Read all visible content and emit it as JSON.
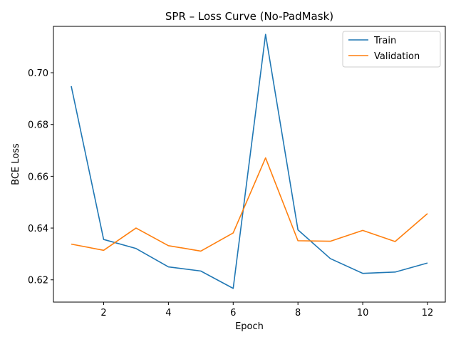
{
  "chart_data": {
    "type": "line",
    "title": "SPR – Loss Curve (No-PadMask)",
    "xlabel": "Epoch",
    "ylabel": "BCE Loss",
    "x": [
      1,
      2,
      3,
      4,
      5,
      6,
      7,
      8,
      9,
      10,
      11,
      12
    ],
    "xlim": [
      0.45,
      12.55
    ],
    "ylim": [
      0.6114,
      0.7179
    ],
    "xticks": [
      2,
      4,
      6,
      8,
      10,
      12
    ],
    "xtick_labels": [
      "2",
      "4",
      "6",
      "8",
      "10",
      "12"
    ],
    "yticks": [
      0.62,
      0.64,
      0.66,
      0.68,
      0.7
    ],
    "ytick_labels": [
      "0.62",
      "0.64",
      "0.66",
      "0.68",
      "0.70"
    ],
    "grid": false,
    "legend_position": "top-right",
    "series": [
      {
        "name": "Train",
        "color": "#1f77b4",
        "values": [
          0.6948,
          0.6356,
          0.6321,
          0.625,
          0.6234,
          0.6167,
          0.7148,
          0.6393,
          0.6282,
          0.6225,
          0.623,
          0.6265
        ]
      },
      {
        "name": "Validation",
        "color": "#ff7f0e",
        "values": [
          0.6338,
          0.6314,
          0.64,
          0.6332,
          0.6311,
          0.6381,
          0.6671,
          0.6351,
          0.6349,
          0.6391,
          0.6348,
          0.6456
        ]
      }
    ]
  }
}
